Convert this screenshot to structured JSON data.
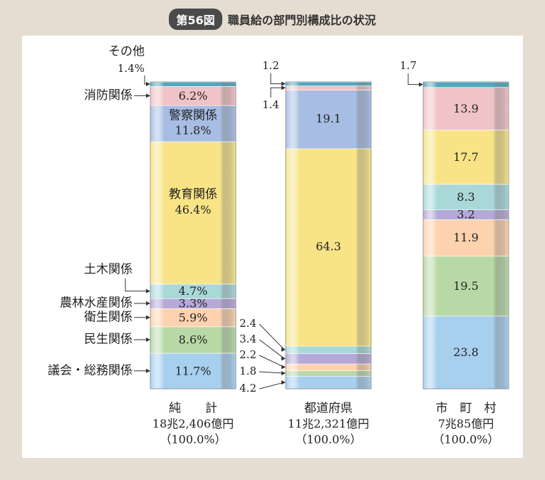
{
  "figure": {
    "badge": "第56図",
    "title": "職員給の部門別構成比の状況"
  },
  "chart_data": {
    "type": "stacked-bar-100",
    "categories_order_bottom_to_top": [
      "議会・総務関係",
      "民生関係",
      "衛生関係",
      "農林水産関係",
      "土木関係",
      "教育関係",
      "警察関係",
      "消防関係",
      "その他"
    ],
    "colors": {
      "議会・総務関係": "#a7cfee",
      "民生関係": "#b8d9a6",
      "衛生関係": "#fdd2ae",
      "農林水産関係": "#b6a8d9",
      "土木関係": "#a9d8d9",
      "教育関係": "#f8e486",
      "警察関係": "#a7bde3",
      "消防関係": "#f0c3c6",
      "その他": "#4fa8c0"
    },
    "bars": [
      {
        "name": "純　　計",
        "total": "18兆2,406億円",
        "share": "（100.0%）",
        "segments": [
          {
            "category": "議会・総務関係",
            "value": 11.7,
            "label": "11.7%"
          },
          {
            "category": "民生関係",
            "value": 8.6,
            "label": "8.6%"
          },
          {
            "category": "衛生関係",
            "value": 5.9,
            "label": "5.9%"
          },
          {
            "category": "農林水産関係",
            "value": 3.3,
            "label": "3.3%"
          },
          {
            "category": "土木関係",
            "value": 4.7,
            "label": "4.7%"
          },
          {
            "category": "教育関係",
            "value": 46.4,
            "label": "46.4%"
          },
          {
            "category": "警察関係",
            "value": 11.8,
            "label": "11.8%"
          },
          {
            "category": "消防関係",
            "value": 6.2,
            "label": "6.2%"
          },
          {
            "category": "その他",
            "value": 1.4,
            "label": "1.4%"
          }
        ]
      },
      {
        "name": "都道府県",
        "total": "11兆2,321億円",
        "share": "（100.0%）",
        "segments": [
          {
            "category": "議会・総務関係",
            "value": 4.2,
            "label": "4.2"
          },
          {
            "category": "民生関係",
            "value": 1.8,
            "label": "1.8"
          },
          {
            "category": "衛生関係",
            "value": 2.2,
            "label": "2.2"
          },
          {
            "category": "農林水産関係",
            "value": 3.4,
            "label": "3.4"
          },
          {
            "category": "土木関係",
            "value": 2.4,
            "label": "2.4"
          },
          {
            "category": "教育関係",
            "value": 64.3,
            "label": "64.3"
          },
          {
            "category": "警察関係",
            "value": 19.1,
            "label": "19.1"
          },
          {
            "category": "消防関係",
            "value": 1.4,
            "label": "1.4"
          },
          {
            "category": "その他",
            "value": 1.2,
            "label": "1.2"
          }
        ]
      },
      {
        "name": "市　町　村",
        "total": "7兆85億円",
        "share": "（100.0%）",
        "segments": [
          {
            "category": "議会・総務関係",
            "value": 23.8,
            "label": "23.8"
          },
          {
            "category": "民生関係",
            "value": 19.5,
            "label": "19.5"
          },
          {
            "category": "衛生関係",
            "value": 11.9,
            "label": "11.9"
          },
          {
            "category": "農林水産関係",
            "value": 3.2,
            "label": "3.2"
          },
          {
            "category": "土木関係",
            "value": 8.3,
            "label": "8.3"
          },
          {
            "category": "教育関係",
            "value": 17.7,
            "label": "17.7"
          },
          {
            "category": "警察関係",
            "value": 0,
            "label": ""
          },
          {
            "category": "消防関係",
            "value": 13.9,
            "label": "13.9"
          },
          {
            "category": "その他",
            "value": 1.7,
            "label": "1.7"
          }
        ]
      }
    ],
    "left_labels": {
      "その他": "その他",
      "消防関係": "消防関係",
      "土木関係": "土木関係",
      "農林水産関係": "農林水産関係",
      "衛生関係": "衛生関係",
      "民生関係": "民生関係",
      "議会・総務関係": "議会・総務関係"
    },
    "ylim": [
      0,
      100
    ]
  }
}
